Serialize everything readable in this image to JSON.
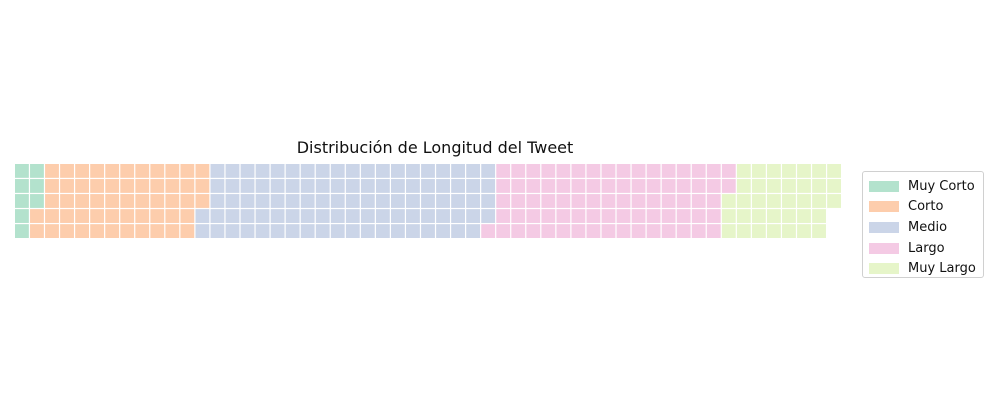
{
  "chart_data": {
    "type": "waffle",
    "title": "Distribución de Longitud del Tweet",
    "rows": 5,
    "categories": [
      {
        "name": "Muy Corto",
        "value": 8,
        "color": "#b3e2cd"
      },
      {
        "name": "Corto",
        "value": 55,
        "color": "#fdcdac"
      },
      {
        "name": "Medio",
        "value": 96,
        "color": "#cbd5e8"
      },
      {
        "name": "Largo",
        "value": 78,
        "color": "#f4cae4"
      },
      {
        "name": "Muy Largo",
        "value": 36,
        "color": "#e6f5c9"
      }
    ],
    "legend": {
      "position": "right"
    },
    "grid": false
  }
}
